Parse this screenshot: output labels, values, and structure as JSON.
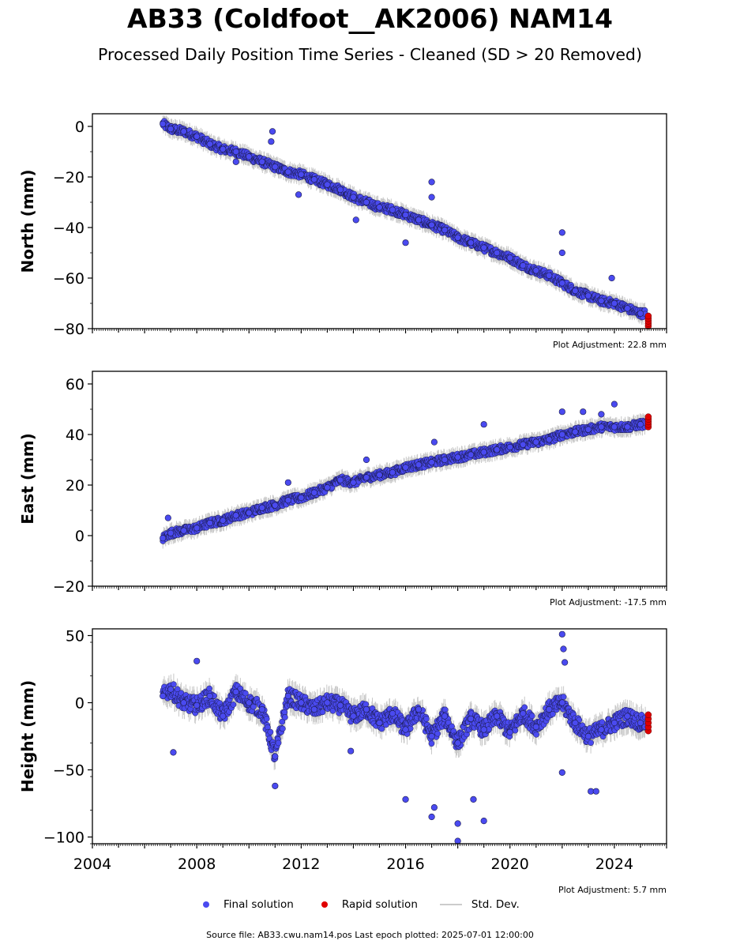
{
  "title": "AB33 (Coldfoot__AK2006) NAM14",
  "subtitle": "Processed Daily Position Time Series - Cleaned (SD > 20 Removed)",
  "legend": {
    "final_label": "Final solution",
    "rapid_label": "Rapid solution",
    "std_label": "Std. Dev."
  },
  "source_text": "Source file: AB33.cwu.nam14.pos  Last epoch plotted: 2025-07-01 12:00:00",
  "colors": {
    "final": "#4a4af0",
    "rapid": "#e00000",
    "std": "#c8c8c8",
    "edge": "#1a1a4a"
  },
  "chart_data": [
    {
      "type": "scatter",
      "ylabel": "North (mm)",
      "xlim": [
        2004,
        2026
      ],
      "ylim": [
        -80,
        5
      ],
      "yticks": [
        0,
        -20,
        -40,
        -60,
        -80
      ],
      "ytick_labels": [
        "0",
        "−20",
        "−40",
        "−60",
        "−80"
      ],
      "adjustment": "Plot Adjustment: 22.8 mm",
      "series": [
        {
          "name": "Final solution",
          "x": [
            2006.7,
            2007.0,
            2007.5,
            2008.0,
            2008.5,
            2009.0,
            2009.5,
            2010.0,
            2010.5,
            2011.0,
            2011.5,
            2012.0,
            2012.5,
            2013.0,
            2013.5,
            2014.0,
            2014.5,
            2015.0,
            2015.5,
            2016.0,
            2016.5,
            2017.0,
            2017.5,
            2018.0,
            2018.5,
            2019.0,
            2019.5,
            2020.0,
            2020.5,
            2021.0,
            2021.5,
            2022.0,
            2022.5,
            2023.0,
            2023.5,
            2024.0,
            2024.5,
            2025.0
          ],
          "y": [
            1,
            -1,
            -2,
            -4,
            -7,
            -9,
            -10,
            -12,
            -14,
            -16,
            -18,
            -19,
            -21,
            -23,
            -25,
            -28,
            -30,
            -32,
            -33,
            -35,
            -37,
            -39,
            -41,
            -44,
            -46,
            -48,
            -50,
            -52,
            -55,
            -57,
            -59,
            -62,
            -65,
            -67,
            -69,
            -70,
            -72,
            -74
          ]
        },
        {
          "name": "Rapid solution",
          "x": [
            2025.3
          ],
          "y": [
            -77
          ]
        }
      ],
      "outliers": [
        {
          "x": 2010.9,
          "y": -2
        },
        {
          "x": 2010.85,
          "y": -6
        },
        {
          "x": 2016.0,
          "y": -46
        },
        {
          "x": 2017.0,
          "y": -22
        },
        {
          "x": 2017.0,
          "y": -28
        },
        {
          "x": 2022.0,
          "y": -42
        },
        {
          "x": 2022.0,
          "y": -50
        },
        {
          "x": 2023.9,
          "y": -60
        },
        {
          "x": 2009.5,
          "y": -14
        },
        {
          "x": 2011.9,
          "y": -27
        },
        {
          "x": 2014.1,
          "y": -37
        }
      ]
    },
    {
      "type": "scatter",
      "ylabel": "East (mm)",
      "xlim": [
        2004,
        2026
      ],
      "ylim": [
        -20,
        65
      ],
      "yticks": [
        60,
        40,
        20,
        0,
        -20
      ],
      "ytick_labels": [
        "60",
        "40",
        "20",
        "0",
        "−20"
      ],
      "adjustment": "Plot Adjustment: -17.5 mm",
      "series": [
        {
          "name": "Final solution",
          "x": [
            2006.7,
            2007.0,
            2007.5,
            2008.0,
            2008.5,
            2009.0,
            2009.5,
            2010.0,
            2010.5,
            2011.0,
            2011.5,
            2012.0,
            2012.5,
            2013.0,
            2013.5,
            2014.0,
            2014.5,
            2015.0,
            2015.5,
            2016.0,
            2016.5,
            2017.0,
            2017.5,
            2018.0,
            2018.5,
            2019.0,
            2019.5,
            2020.0,
            2020.5,
            2021.0,
            2021.5,
            2022.0,
            2022.5,
            2023.0,
            2023.5,
            2024.0,
            2024.5,
            2025.0
          ],
          "y": [
            -1,
            1,
            2,
            3,
            5,
            6,
            8,
            9,
            11,
            12,
            14,
            15,
            17,
            19,
            22,
            21,
            23,
            24,
            25,
            27,
            28,
            29,
            30,
            31,
            32,
            33,
            34,
            35,
            36,
            37,
            38,
            40,
            41,
            42,
            43,
            43,
            43,
            44
          ]
        },
        {
          "name": "Rapid solution",
          "x": [
            2025.3
          ],
          "y": [
            45
          ]
        }
      ],
      "outliers": [
        {
          "x": 2011.5,
          "y": 21
        },
        {
          "x": 2014.5,
          "y": 30
        },
        {
          "x": 2017.1,
          "y": 37
        },
        {
          "x": 2019.0,
          "y": 44
        },
        {
          "x": 2022.0,
          "y": 49
        },
        {
          "x": 2022.8,
          "y": 49
        },
        {
          "x": 2023.5,
          "y": 48
        },
        {
          "x": 2024.0,
          "y": 52
        },
        {
          "x": 2006.9,
          "y": 7
        }
      ]
    },
    {
      "type": "scatter",
      "ylabel": "Height (mm)",
      "xlim": [
        2004,
        2026
      ],
      "ylim": [
        -105,
        55
      ],
      "yticks": [
        50,
        0,
        -50,
        -100
      ],
      "ytick_labels": [
        "50",
        "0",
        "−50",
        "−100"
      ],
      "xticks": [
        2004,
        2008,
        2012,
        2016,
        2020,
        2024
      ],
      "xtick_labels": [
        "2004",
        "2008",
        "2012",
        "2016",
        "2020",
        "2024"
      ],
      "adjustment": "Plot Adjustment: 5.7 mm",
      "series": [
        {
          "name": "Final solution",
          "x": [
            2006.7,
            2007.0,
            2007.5,
            2008.0,
            2008.5,
            2009.0,
            2009.5,
            2010.0,
            2010.5,
            2011.0,
            2011.5,
            2012.0,
            2012.5,
            2013.0,
            2013.5,
            2014.0,
            2014.5,
            2015.0,
            2015.5,
            2016.0,
            2016.5,
            2017.0,
            2017.5,
            2018.0,
            2018.5,
            2019.0,
            2019.5,
            2020.0,
            2020.5,
            2021.0,
            2021.5,
            2022.0,
            2022.5,
            2023.0,
            2023.5,
            2024.0,
            2024.5,
            2025.0
          ],
          "y": [
            5,
            10,
            0,
            -2,
            5,
            -10,
            8,
            0,
            -5,
            -40,
            5,
            0,
            -5,
            0,
            -2,
            -10,
            -5,
            -15,
            -8,
            -20,
            -5,
            -25,
            -10,
            -30,
            -12,
            -20,
            -10,
            -22,
            -8,
            -18,
            -5,
            0,
            -15,
            -25,
            -20,
            -15,
            -10,
            -15
          ]
        },
        {
          "name": "Rapid solution",
          "x": [
            2025.3
          ],
          "y": [
            -15
          ]
        }
      ],
      "outliers": [
        {
          "x": 2007.1,
          "y": -37
        },
        {
          "x": 2008.0,
          "y": 31
        },
        {
          "x": 2011.0,
          "y": -62
        },
        {
          "x": 2013.9,
          "y": -36
        },
        {
          "x": 2016.0,
          "y": -72
        },
        {
          "x": 2017.0,
          "y": -85
        },
        {
          "x": 2017.1,
          "y": -78
        },
        {
          "x": 2018.0,
          "y": -103
        },
        {
          "x": 2018.0,
          "y": -90
        },
        {
          "x": 2018.6,
          "y": -72
        },
        {
          "x": 2019.0,
          "y": -88
        },
        {
          "x": 2022.0,
          "y": 51
        },
        {
          "x": 2022.05,
          "y": 40
        },
        {
          "x": 2022.1,
          "y": 30
        },
        {
          "x": 2023.1,
          "y": -66
        },
        {
          "x": 2023.3,
          "y": -66
        },
        {
          "x": 2022.0,
          "y": -52
        }
      ]
    }
  ]
}
